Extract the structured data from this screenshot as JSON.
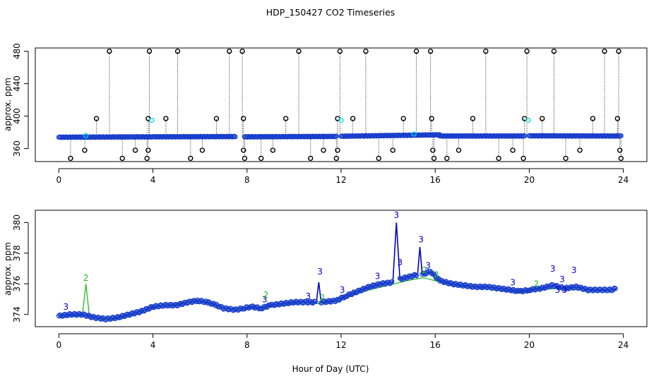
{
  "title": "HDP_150427  CO2 Timeseries",
  "colors": {
    "raw": "#000000",
    "flag_cyan": "#00dddd",
    "flag2_green": "#22bb22",
    "flag3_blue": "#0000cc",
    "circle_blue": "#1a3fcc"
  },
  "chart_data": [
    {
      "type": "scatter",
      "name": "top",
      "title": "HDP_150427  CO2 Timeseries",
      "xlabel": "",
      "ylabel": "approx. ppm",
      "xlim": [
        -1,
        25
      ],
      "ylim": [
        344,
        484
      ],
      "xticks": [
        0,
        4,
        8,
        12,
        16,
        20,
        24
      ],
      "xtick_labels": [
        "0",
        "4",
        "8",
        "12",
        "16",
        "20",
        "24"
      ],
      "yticks": [
        360,
        400,
        440,
        480
      ],
      "ytick_labels": [
        "360",
        "400",
        "440",
        "480"
      ],
      "baseline_level": 374,
      "baseline_segments": [
        [
          0.0,
          3.95,
          374.0,
          374.5
        ],
        [
          4.0,
          7.5,
          374.5,
          374.8
        ],
        [
          7.9,
          11.8,
          374.5,
          375.0
        ],
        [
          12.0,
          16.2,
          375.2,
          377.0
        ],
        [
          16.2,
          19.8,
          375.5,
          375.5
        ],
        [
          20.0,
          23.9,
          375.7,
          375.5
        ]
      ],
      "spikes": [
        {
          "x": 2.15,
          "y": 480
        },
        {
          "x": 3.85,
          "y": 480
        },
        {
          "x": 5.05,
          "y": 480
        },
        {
          "x": 7.25,
          "y": 480
        },
        {
          "x": 7.8,
          "y": 480
        },
        {
          "x": 10.2,
          "y": 480
        },
        {
          "x": 11.95,
          "y": 480
        },
        {
          "x": 13.05,
          "y": 480
        },
        {
          "x": 15.2,
          "y": 480
        },
        {
          "x": 15.8,
          "y": 480
        },
        {
          "x": 18.15,
          "y": 480
        },
        {
          "x": 19.9,
          "y": 480
        },
        {
          "x": 21.05,
          "y": 480
        },
        {
          "x": 23.2,
          "y": 480
        },
        {
          "x": 23.8,
          "y": 480
        },
        {
          "x": 1.6,
          "y": 397
        },
        {
          "x": 3.8,
          "y": 397
        },
        {
          "x": 4.55,
          "y": 397
        },
        {
          "x": 6.7,
          "y": 397
        },
        {
          "x": 7.85,
          "y": 397
        },
        {
          "x": 9.65,
          "y": 397
        },
        {
          "x": 11.85,
          "y": 397
        },
        {
          "x": 12.5,
          "y": 397
        },
        {
          "x": 14.65,
          "y": 397
        },
        {
          "x": 15.85,
          "y": 397
        },
        {
          "x": 17.6,
          "y": 397
        },
        {
          "x": 19.8,
          "y": 397
        },
        {
          "x": 20.55,
          "y": 397
        },
        {
          "x": 22.7,
          "y": 397
        },
        {
          "x": 23.75,
          "y": 397
        }
      ],
      "dips": [
        {
          "x": 1.1,
          "y": 358
        },
        {
          "x": 3.25,
          "y": 358
        },
        {
          "x": 3.8,
          "y": 358
        },
        {
          "x": 6.1,
          "y": 358
        },
        {
          "x": 7.85,
          "y": 358
        },
        {
          "x": 9.1,
          "y": 358
        },
        {
          "x": 11.25,
          "y": 358
        },
        {
          "x": 11.85,
          "y": 358
        },
        {
          "x": 14.2,
          "y": 358
        },
        {
          "x": 15.9,
          "y": 358
        },
        {
          "x": 17.0,
          "y": 358
        },
        {
          "x": 19.3,
          "y": 358
        },
        {
          "x": 22.15,
          "y": 358
        },
        {
          "x": 23.85,
          "y": 358
        },
        {
          "x": 0.5,
          "y": 348
        },
        {
          "x": 2.7,
          "y": 348
        },
        {
          "x": 3.75,
          "y": 348
        },
        {
          "x": 5.6,
          "y": 348
        },
        {
          "x": 7.9,
          "y": 348
        },
        {
          "x": 8.6,
          "y": 348
        },
        {
          "x": 10.7,
          "y": 348
        },
        {
          "x": 11.8,
          "y": 348
        },
        {
          "x": 13.6,
          "y": 348
        },
        {
          "x": 15.95,
          "y": 348
        },
        {
          "x": 16.5,
          "y": 348
        },
        {
          "x": 18.7,
          "y": 348
        },
        {
          "x": 19.75,
          "y": 348
        },
        {
          "x": 21.55,
          "y": 348
        },
        {
          "x": 23.9,
          "y": 348
        }
      ],
      "cyan_points": [
        {
          "x": 3.95,
          "y": 395
        },
        {
          "x": 12.0,
          "y": 395
        },
        {
          "x": 19.95,
          "y": 395
        },
        {
          "x": 1.15,
          "y": 376
        },
        {
          "x": 15.1,
          "y": 378
        }
      ]
    },
    {
      "type": "line",
      "name": "bottom",
      "xlabel": "Hour of Day (UTC)",
      "ylabel": "approx. ppm",
      "xlim": [
        -1,
        25
      ],
      "ylim": [
        373.2,
        380.8
      ],
      "xticks": [
        0,
        4,
        8,
        12,
        16,
        20,
        24
      ],
      "xtick_labels": [
        "0",
        "4",
        "8",
        "12",
        "16",
        "20",
        "24"
      ],
      "yticks": [
        374,
        376,
        378,
        380
      ],
      "ytick_labels": [
        "374",
        "376",
        "378",
        "380"
      ],
      "series": [
        {
          "name": "flag3",
          "points": [
            [
              0.0,
              373.9
            ],
            [
              0.5,
              374.0
            ],
            [
              1.0,
              374.0
            ],
            [
              1.5,
              373.8
            ],
            [
              2.0,
              373.7
            ],
            [
              2.5,
              373.8
            ],
            [
              3.0,
              374.0
            ],
            [
              3.5,
              374.2
            ],
            [
              4.0,
              374.5
            ],
            [
              4.5,
              374.6
            ],
            [
              5.0,
              374.6
            ],
            [
              5.5,
              374.8
            ],
            [
              5.9,
              374.9
            ],
            [
              6.3,
              374.8
            ],
            [
              6.7,
              374.6
            ],
            [
              7.0,
              374.4
            ],
            [
              7.5,
              374.3
            ],
            [
              7.85,
              374.4
            ],
            [
              8.2,
              374.5
            ],
            [
              8.6,
              374.4
            ],
            [
              9.0,
              374.6
            ],
            [
              9.5,
              374.7
            ],
            [
              10.0,
              374.8
            ],
            [
              10.5,
              374.8
            ],
            [
              10.95,
              374.8
            ],
            [
              11.05,
              376.1
            ],
            [
              11.15,
              374.8
            ],
            [
              11.8,
              374.9
            ],
            [
              12.2,
              375.2
            ],
            [
              12.7,
              375.5
            ],
            [
              13.2,
              375.8
            ],
            [
              13.7,
              376.0
            ],
            [
              14.2,
              376.1
            ],
            [
              14.35,
              380.0
            ],
            [
              14.5,
              376.3
            ],
            [
              15.0,
              376.5
            ],
            [
              15.25,
              376.6
            ],
            [
              15.35,
              378.4
            ],
            [
              15.45,
              376.6
            ],
            [
              15.8,
              376.8
            ],
            [
              16.2,
              376.2
            ],
            [
              16.7,
              376.0
            ],
            [
              17.2,
              375.9
            ],
            [
              17.7,
              375.8
            ],
            [
              18.2,
              375.8
            ],
            [
              18.7,
              375.7
            ],
            [
              19.2,
              375.6
            ],
            [
              19.6,
              375.5
            ],
            [
              20.0,
              375.6
            ],
            [
              20.5,
              375.7
            ],
            [
              21.0,
              375.9
            ],
            [
              21.5,
              375.7
            ],
            [
              22.0,
              375.8
            ],
            [
              22.5,
              375.6
            ],
            [
              23.0,
              375.6
            ],
            [
              23.5,
              375.6
            ],
            [
              23.7,
              375.7
            ]
          ]
        },
        {
          "name": "flag2",
          "points": [
            [
              0.0,
              373.8
            ],
            [
              0.6,
              373.9
            ],
            [
              1.0,
              373.9
            ],
            [
              1.15,
              376.0
            ],
            [
              1.3,
              373.9
            ],
            [
              1.8,
              373.7
            ],
            [
              2.5,
              373.7
            ],
            [
              3.0,
              373.9
            ],
            [
              3.6,
              374.1
            ],
            [
              4.2,
              374.5
            ],
            [
              5.0,
              374.7
            ],
            [
              6.0,
              374.9
            ],
            [
              6.8,
              374.5
            ],
            [
              7.4,
              374.3
            ],
            [
              8.2,
              374.4
            ],
            [
              9.0,
              374.5
            ],
            [
              9.6,
              374.6
            ],
            [
              10.4,
              374.8
            ],
            [
              11.0,
              374.7
            ],
            [
              11.6,
              374.8
            ],
            [
              12.4,
              375.2
            ],
            [
              13.2,
              375.6
            ],
            [
              14.0,
              375.9
            ],
            [
              14.8,
              376.2
            ],
            [
              15.5,
              376.4
            ],
            [
              16.0,
              376.2
            ],
            [
              16.8,
              375.9
            ],
            [
              17.6,
              375.8
            ],
            [
              18.5,
              375.6
            ],
            [
              19.5,
              375.4
            ],
            [
              20.3,
              375.6
            ],
            [
              21.2,
              375.7
            ],
            [
              22.0,
              375.6
            ],
            [
              22.8,
              375.5
            ],
            [
              23.6,
              375.6
            ]
          ]
        }
      ],
      "markers": [
        {
          "x": 0.3,
          "y": 374.3,
          "label": "3",
          "series": "flag3"
        },
        {
          "x": 8.75,
          "y": 374.8,
          "label": "3",
          "series": "flag3"
        },
        {
          "x": 10.6,
          "y": 375.0,
          "label": "3",
          "series": "flag3"
        },
        {
          "x": 11.1,
          "y": 376.6,
          "label": "3",
          "series": "flag3"
        },
        {
          "x": 12.05,
          "y": 375.4,
          "label": "3",
          "series": "flag3"
        },
        {
          "x": 13.55,
          "y": 376.3,
          "label": "3",
          "series": "flag3"
        },
        {
          "x": 14.35,
          "y": 380.3,
          "label": "3",
          "series": "flag3"
        },
        {
          "x": 14.5,
          "y": 377.2,
          "label": "3",
          "series": "flag3"
        },
        {
          "x": 15.4,
          "y": 378.7,
          "label": "3",
          "series": "flag3"
        },
        {
          "x": 15.7,
          "y": 377.0,
          "label": "3",
          "series": "flag3"
        },
        {
          "x": 19.3,
          "y": 375.9,
          "label": "3",
          "series": "flag3"
        },
        {
          "x": 21.0,
          "y": 376.8,
          "label": "3",
          "series": "flag3"
        },
        {
          "x": 21.4,
          "y": 376.1,
          "label": "3",
          "series": "flag3"
        },
        {
          "x": 21.9,
          "y": 376.7,
          "label": "3",
          "series": "flag3"
        },
        {
          "x": 21.2,
          "y": 375.4,
          "label": "3",
          "series": "flag3"
        },
        {
          "x": 21.5,
          "y": 375.4,
          "label": "3",
          "series": "flag3"
        },
        {
          "x": 1.15,
          "y": 376.2,
          "label": "2",
          "series": "flag2"
        },
        {
          "x": 8.8,
          "y": 375.1,
          "label": "2",
          "series": "flag2"
        },
        {
          "x": 11.2,
          "y": 374.9,
          "label": "2",
          "series": "flag2"
        },
        {
          "x": 15.55,
          "y": 376.7,
          "label": "2",
          "series": "flag2"
        },
        {
          "x": 16.05,
          "y": 376.4,
          "label": "2",
          "series": "flag2"
        },
        {
          "x": 20.3,
          "y": 375.8,
          "label": "2",
          "series": "flag2"
        }
      ]
    }
  ]
}
